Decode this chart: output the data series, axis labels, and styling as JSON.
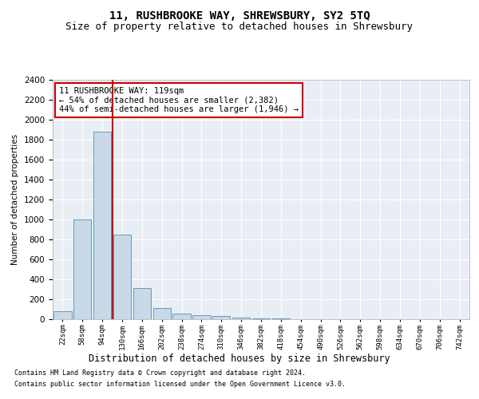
{
  "title": "11, RUSHBROOKE WAY, SHREWSBURY, SY2 5TQ",
  "subtitle": "Size of property relative to detached houses in Shrewsbury",
  "xlabel": "Distribution of detached houses by size in Shrewsbury",
  "ylabel": "Number of detached properties",
  "categories": [
    "22sqm",
    "58sqm",
    "94sqm",
    "130sqm",
    "166sqm",
    "202sqm",
    "238sqm",
    "274sqm",
    "310sqm",
    "346sqm",
    "382sqm",
    "418sqm",
    "454sqm",
    "490sqm",
    "526sqm",
    "562sqm",
    "598sqm",
    "634sqm",
    "670sqm",
    "706sqm",
    "742sqm"
  ],
  "values": [
    80,
    1000,
    1880,
    850,
    310,
    110,
    55,
    40,
    30,
    15,
    10,
    5,
    2,
    1,
    1,
    0,
    0,
    0,
    0,
    0,
    0
  ],
  "bar_color": "#c9d9e8",
  "bar_edge_color": "#6699bb",
  "vline_x": 2.5,
  "vline_color": "#cc0000",
  "ylim": [
    0,
    2400
  ],
  "yticks": [
    0,
    200,
    400,
    600,
    800,
    1000,
    1200,
    1400,
    1600,
    1800,
    2000,
    2200,
    2400
  ],
  "annotation_line1": "11 RUSHBROOKE WAY: 119sqm",
  "annotation_line2": "← 54% of detached houses are smaller (2,382)",
  "annotation_line3": "44% of semi-detached houses are larger (1,946) →",
  "annotation_box_color": "#ffffff",
  "annotation_box_edge": "#cc0000",
  "footer1": "Contains HM Land Registry data © Crown copyright and database right 2024.",
  "footer2": "Contains public sector information licensed under the Open Government Licence v3.0.",
  "bg_color": "#e8eef4",
  "title_fontsize": 10,
  "subtitle_fontsize": 9,
  "grid_color": "#ffffff"
}
